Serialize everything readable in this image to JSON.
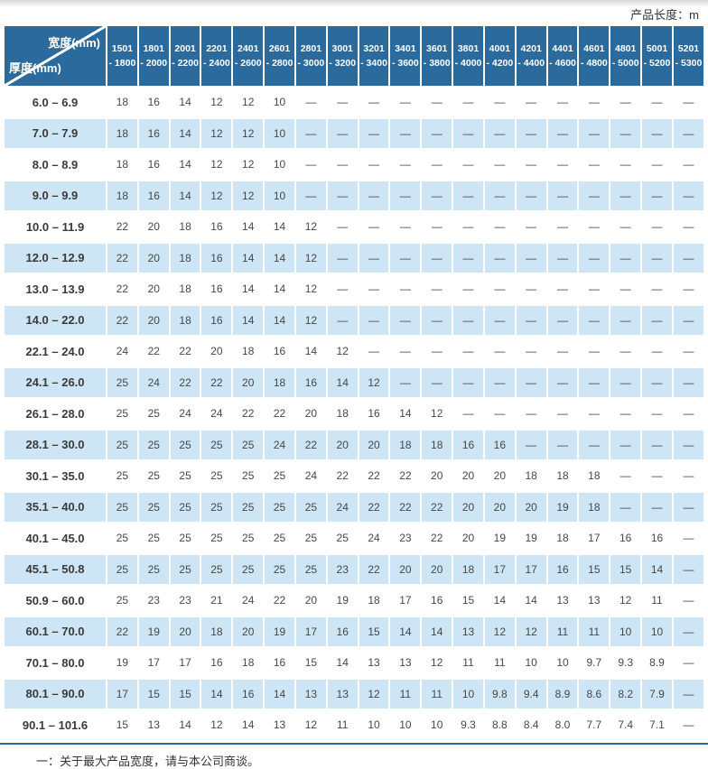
{
  "header": {
    "unit_label": "产品长度：m"
  },
  "table": {
    "corner": {
      "top_right": "宽度(mm)",
      "bottom_left": "厚度(mm)"
    },
    "columns": [
      {
        "line1": "1501",
        "line2": "- 1800"
      },
      {
        "line1": "1801",
        "line2": "- 2000"
      },
      {
        "line1": "2001",
        "line2": "- 2200"
      },
      {
        "line1": "2201",
        "line2": "- 2400"
      },
      {
        "line1": "2401",
        "line2": "- 2600"
      },
      {
        "line1": "2601",
        "line2": "- 2800"
      },
      {
        "line1": "2801",
        "line2": "- 3000"
      },
      {
        "line1": "3001",
        "line2": "- 3200"
      },
      {
        "line1": "3201",
        "line2": "- 3400"
      },
      {
        "line1": "3401",
        "line2": "- 3600"
      },
      {
        "line1": "3601",
        "line2": "- 3800"
      },
      {
        "line1": "3801",
        "line2": "- 4000"
      },
      {
        "line1": "4001",
        "line2": "- 4200"
      },
      {
        "line1": "4201",
        "line2": "- 4400"
      },
      {
        "line1": "4401",
        "line2": "- 4600"
      },
      {
        "line1": "4601",
        "line2": "- 4800"
      },
      {
        "line1": "4801",
        "line2": "- 5000"
      },
      {
        "line1": "5001",
        "line2": "- 5200"
      },
      {
        "line1": "5201",
        "line2": "- 5300"
      }
    ],
    "rows": [
      {
        "label": "6.0 –  6.9",
        "values": [
          "18",
          "16",
          "14",
          "12",
          "12",
          "10",
          "—",
          "—",
          "—",
          "—",
          "—",
          "—",
          "—",
          "—",
          "—",
          "—",
          "—",
          "—",
          "—"
        ]
      },
      {
        "label": "7.0 –  7.9",
        "values": [
          "18",
          "16",
          "14",
          "12",
          "12",
          "10",
          "—",
          "—",
          "—",
          "—",
          "—",
          "—",
          "—",
          "—",
          "—",
          "—",
          "—",
          "—",
          "—"
        ]
      },
      {
        "label": "8.0 –  8.9",
        "values": [
          "18",
          "16",
          "14",
          "12",
          "12",
          "10",
          "—",
          "—",
          "—",
          "—",
          "—",
          "—",
          "—",
          "—",
          "—",
          "—",
          "—",
          "—",
          "—"
        ]
      },
      {
        "label": "9.0 –  9.9",
        "values": [
          "18",
          "16",
          "14",
          "12",
          "12",
          "10",
          "—",
          "—",
          "—",
          "—",
          "—",
          "—",
          "—",
          "—",
          "—",
          "—",
          "—",
          "—",
          "—"
        ]
      },
      {
        "label": "10.0 –  11.9",
        "values": [
          "22",
          "20",
          "18",
          "16",
          "14",
          "14",
          "12",
          "—",
          "—",
          "—",
          "—",
          "—",
          "—",
          "—",
          "—",
          "—",
          "—",
          "—",
          "—"
        ]
      },
      {
        "label": "12.0 –  12.9",
        "values": [
          "22",
          "20",
          "18",
          "16",
          "14",
          "14",
          "12",
          "—",
          "—",
          "—",
          "—",
          "—",
          "—",
          "—",
          "—",
          "—",
          "—",
          "—",
          "—"
        ]
      },
      {
        "label": "13.0 –  13.9",
        "values": [
          "22",
          "20",
          "18",
          "16",
          "14",
          "14",
          "12",
          "—",
          "—",
          "—",
          "—",
          "—",
          "—",
          "—",
          "—",
          "—",
          "—",
          "—",
          "—"
        ]
      },
      {
        "label": "14.0 –  22.0",
        "values": [
          "22",
          "20",
          "18",
          "16",
          "14",
          "14",
          "12",
          "—",
          "—",
          "—",
          "—",
          "—",
          "—",
          "—",
          "—",
          "—",
          "—",
          "—",
          "—"
        ]
      },
      {
        "label": "22.1 –  24.0",
        "values": [
          "24",
          "22",
          "22",
          "20",
          "18",
          "16",
          "14",
          "12",
          "—",
          "—",
          "—",
          "—",
          "—",
          "—",
          "—",
          "—",
          "—",
          "—",
          "—"
        ]
      },
      {
        "label": "24.1 –  26.0",
        "values": [
          "25",
          "24",
          "22",
          "22",
          "20",
          "18",
          "16",
          "14",
          "12",
          "—",
          "—",
          "—",
          "—",
          "—",
          "—",
          "—",
          "—",
          "—",
          "—"
        ]
      },
      {
        "label": "26.1 –  28.0",
        "values": [
          "25",
          "25",
          "24",
          "24",
          "22",
          "22",
          "20",
          "18",
          "16",
          "14",
          "12",
          "—",
          "—",
          "—",
          "—",
          "—",
          "—",
          "—",
          "—"
        ]
      },
      {
        "label": "28.1 –  30.0",
        "values": [
          "25",
          "25",
          "25",
          "25",
          "25",
          "24",
          "22",
          "20",
          "20",
          "18",
          "18",
          "16",
          "16",
          "—",
          "—",
          "—",
          "—",
          "—",
          "—"
        ]
      },
      {
        "label": "30.1 –  35.0",
        "values": [
          "25",
          "25",
          "25",
          "25",
          "25",
          "25",
          "24",
          "22",
          "22",
          "22",
          "20",
          "20",
          "20",
          "18",
          "18",
          "18",
          "—",
          "—",
          "—"
        ]
      },
      {
        "label": "35.1 –  40.0",
        "values": [
          "25",
          "25",
          "25",
          "25",
          "25",
          "25",
          "25",
          "24",
          "22",
          "22",
          "22",
          "20",
          "20",
          "20",
          "19",
          "18",
          "—",
          "—",
          "—"
        ]
      },
      {
        "label": "40.1 –  45.0",
        "values": [
          "25",
          "25",
          "25",
          "25",
          "25",
          "25",
          "25",
          "25",
          "24",
          "23",
          "22",
          "20",
          "19",
          "19",
          "18",
          "17",
          "16",
          "16",
          "—"
        ]
      },
      {
        "label": "45.1 –  50.8",
        "values": [
          "25",
          "25",
          "25",
          "25",
          "25",
          "25",
          "25",
          "23",
          "22",
          "20",
          "20",
          "18",
          "17",
          "17",
          "16",
          "15",
          "15",
          "14",
          "—"
        ]
      },
      {
        "label": "50.9 –  60.0",
        "values": [
          "25",
          "23",
          "23",
          "21",
          "24",
          "22",
          "20",
          "19",
          "18",
          "17",
          "16",
          "15",
          "14",
          "14",
          "13",
          "13",
          "12",
          "11",
          "—"
        ]
      },
      {
        "label": "60.1 –  70.0",
        "values": [
          "22",
          "19",
          "20",
          "18",
          "20",
          "19",
          "17",
          "16",
          "15",
          "14",
          "14",
          "13",
          "12",
          "12",
          "11",
          "11",
          "10",
          "10",
          "—"
        ]
      },
      {
        "label": "70.1 –  80.0",
        "values": [
          "19",
          "17",
          "17",
          "16",
          "18",
          "16",
          "15",
          "14",
          "13",
          "13",
          "12",
          "11",
          "11",
          "10",
          "10",
          "9.7",
          "9.3",
          "8.9",
          "—"
        ]
      },
      {
        "label": "80.1 –  90.0",
        "values": [
          "17",
          "15",
          "15",
          "14",
          "16",
          "14",
          "13",
          "13",
          "12",
          "11",
          "11",
          "10",
          "9.8",
          "9.4",
          "8.9",
          "8.6",
          "8.2",
          "7.9",
          "—"
        ]
      },
      {
        "label": "90.1 – 101.6",
        "values": [
          "15",
          "13",
          "14",
          "12",
          "14",
          "13",
          "12",
          "11",
          "10",
          "10",
          "10",
          "9.3",
          "8.8",
          "8.4",
          "8.0",
          "7.7",
          "7.4",
          "7.1",
          "—"
        ]
      }
    ]
  },
  "footnote": {
    "text": "一：关于最大产品宽度，请与本公司商谈。"
  },
  "colors": {
    "header_blue": "#2b6a9c",
    "row_alt_blue": "#cde5f4",
    "rule_blue": "#2b6a9c"
  }
}
